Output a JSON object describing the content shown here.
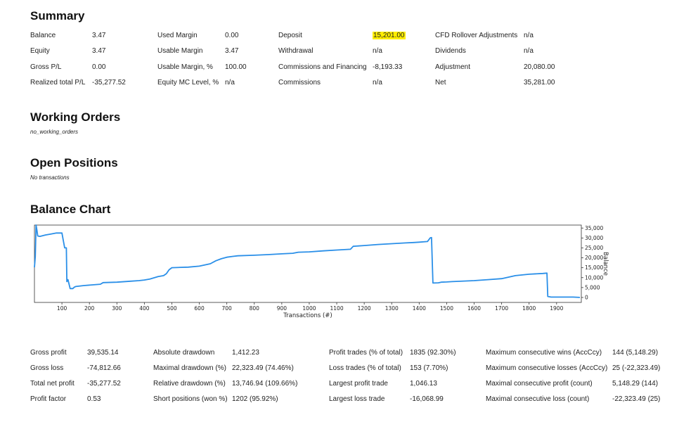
{
  "summary": {
    "title": "Summary",
    "rows": [
      [
        "Balance",
        "3.47",
        "Used Margin",
        "0.00",
        "Deposit",
        "15,201.00",
        "CFD Rollover Adjustments",
        "n/a"
      ],
      [
        "Equity",
        "3.47",
        "Usable Margin",
        "3.47",
        "Withdrawal",
        "n/a",
        "Dividends",
        "n/a"
      ],
      [
        "Gross P/L",
        "0.00",
        "Usable Margin, %",
        "100.00",
        "Commissions and Financing",
        "-8,193.33",
        "Adjustment",
        "20,080.00"
      ],
      [
        "Realized total P/L",
        "-35,277.52",
        "Equity MC Level, %",
        "n/a",
        "Commissions",
        "n/a",
        "Net",
        "35,281.00"
      ]
    ],
    "highlight_color": "#ffee00"
  },
  "working_orders": {
    "title": "Working Orders",
    "note": "no_working_orders"
  },
  "open_positions": {
    "title": "Open Positions",
    "note": "No transactions"
  },
  "balance_chart": {
    "title": "Balance Chart"
  },
  "chart_data": {
    "type": "line",
    "title": "",
    "xlabel": "Transactions (#)",
    "ylabel": "Balance",
    "xlim": [
      0,
      1990
    ],
    "ylim": [
      -2500,
      36500
    ],
    "x_ticks": [
      100,
      200,
      300,
      400,
      500,
      600,
      700,
      800,
      900,
      1000,
      1100,
      1200,
      1300,
      1400,
      1500,
      1600,
      1700,
      1800,
      1900
    ],
    "y_ticks": [
      0,
      5000,
      10000,
      15000,
      20000,
      25000,
      30000,
      35000
    ],
    "y_tick_labels": [
      "0",
      "5,000",
      "10,000",
      "15,000",
      "20,000",
      "25,000",
      "30,000",
      "35,000"
    ],
    "y_axis_side": "right",
    "grid": false,
    "line_color": "#2a8fe8",
    "series": [
      {
        "x": [
          0,
          3,
          6,
          9,
          12,
          20,
          40,
          60,
          80,
          100,
          110,
          116,
          118,
          122,
          130,
          140,
          145,
          150,
          180,
          240,
          250,
          300,
          350,
          380,
          400,
          420,
          450,
          470,
          480,
          490,
          500,
          560,
          600,
          640,
          660,
          680,
          700,
          720,
          740,
          800,
          850,
          900,
          940,
          960,
          1000,
          1050,
          1100,
          1150,
          1160,
          1200,
          1250,
          1300,
          1350,
          1380,
          1400,
          1430,
          1440,
          1445,
          1450,
          1470,
          1480,
          1500,
          1520,
          1600,
          1650,
          1700,
          1750,
          1800,
          1850,
          1865,
          1868,
          1880,
          1920,
          1960,
          1985
        ],
        "y": [
          15201,
          20500,
          36500,
          34000,
          31000,
          30800,
          31500,
          32000,
          32500,
          32500,
          25000,
          25000,
          8000,
          9000,
          4500,
          4500,
          5200,
          5500,
          6000,
          6700,
          7500,
          7700,
          8200,
          8500,
          8800,
          9300,
          10500,
          11000,
          12000,
          14000,
          15000,
          15300,
          15800,
          17000,
          18500,
          19500,
          20300,
          20700,
          21000,
          21300,
          21600,
          22000,
          22300,
          22800,
          23000,
          23500,
          23900,
          24300,
          25800,
          26200,
          26700,
          27100,
          27500,
          27700,
          27900,
          28200,
          30000,
          30200,
          7300,
          7400,
          7700,
          7800,
          8000,
          8500,
          9000,
          9500,
          11000,
          11700,
          12100,
          12300,
          500,
          200,
          200,
          200,
          3.47
        ]
      }
    ]
  },
  "stats": {
    "rows": [
      [
        "Gross profit",
        "39,535.14",
        "Absolute drawdown",
        "1,412.23",
        "Profit trades (% of total)",
        "1835 (92.30%)",
        "Maximum consecutive wins (AccCcy)",
        "144 (5,148.29)"
      ],
      [
        "Gross loss",
        "-74,812.66",
        "Maximal drawdown (%)",
        "22,323.49 (74.46%)",
        "Loss trades (% of total)",
        "153 (7.70%)",
        "Maximum consecutive losses (AccCcy)",
        "25 (-22,323.49)"
      ],
      [
        "Total net profit",
        "-35,277.52",
        "Relative drawdown (%)",
        "13,746.94 (109.66%)",
        "Largest profit trade",
        "1,046.13",
        "Maximal consecutive profit (count)",
        "5,148.29 (144)"
      ],
      [
        "Profit factor",
        "0.53",
        "Short positions (won %)",
        "1202 (95.92%)",
        "Largest loss trade",
        "-16,068.99",
        "Maximal consecutive loss (count)",
        "-22,323.49 (25)"
      ]
    ]
  }
}
